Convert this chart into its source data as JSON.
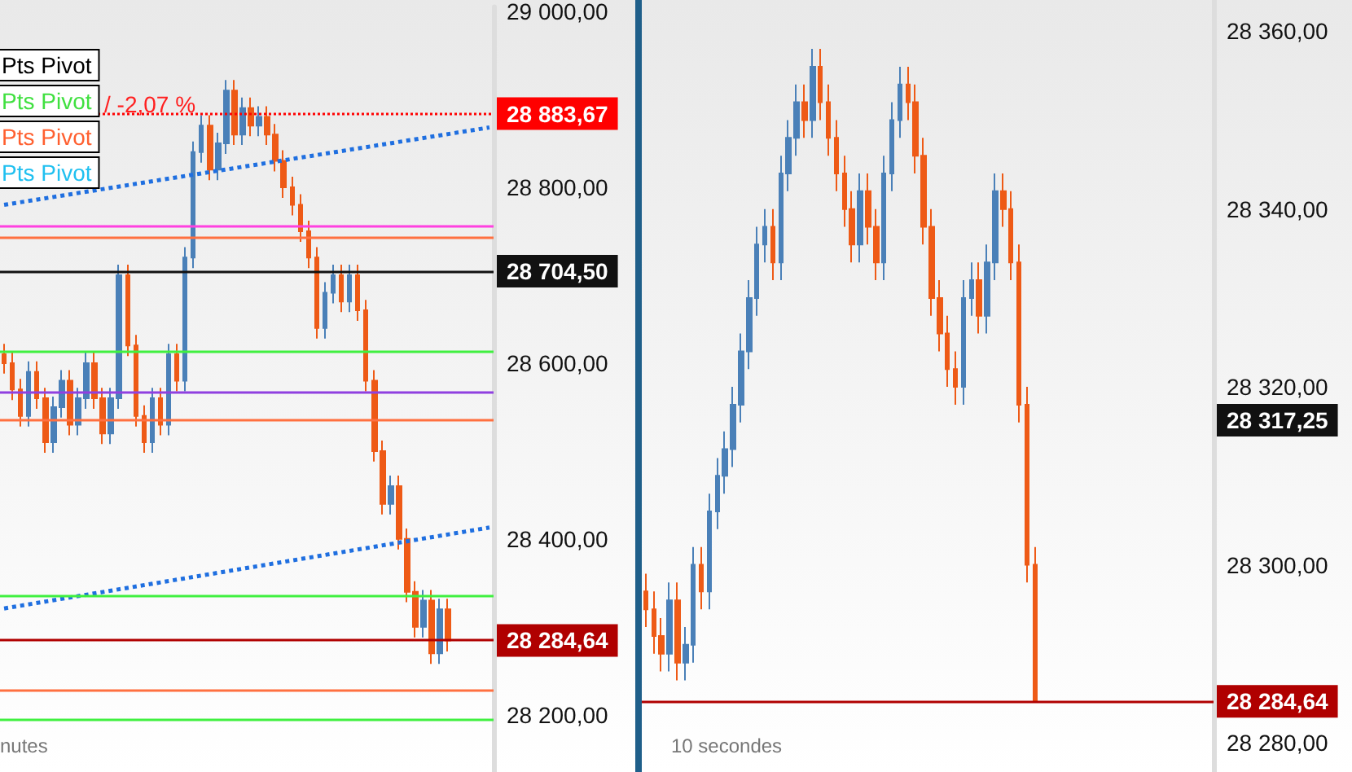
{
  "chart_data": [
    {
      "type": "candlestick",
      "tick_labels": "y",
      "colors": [
        "#ee5a16",
        "#ee5a16",
        "#ee5a16",
        "#4a80b8",
        "#ee5a16",
        "#ee5a16",
        "#4a80b8",
        "#4a80b8",
        "#ee5a16",
        "#4a80b8",
        "#4a80b8",
        "#ee5a16",
        "#ee5a16",
        "#4a80b8",
        "#4a80b8",
        "#ee5a16",
        "#ee5a16",
        "#ee5a16",
        "#4a80b8",
        "#ee5a16",
        "#4a80b8",
        "#ee5a16",
        "#4a80b8",
        "#4a80b8",
        "#4a80b8",
        "#ee5a16",
        "#4a80b8",
        "#4a80b8",
        "#ee5a16",
        "#4a80b8",
        "#ee5a16",
        "#4a80b8",
        "#ee5a16",
        "#ee5a16",
        "#ee5a16",
        "#ee5a16",
        "#ee5a16",
        "#ee5a16",
        "#ee5a16",
        "#4a80b8",
        "#4a80b8",
        "#ee5a16",
        "#4a80b8",
        "#ee5a16",
        "#ee5a16",
        "#ee5a16",
        "#ee5a16",
        "#4a80b8",
        "#ee5a16",
        "#ee5a16",
        "#ee5a16",
        "#4a80b8",
        "#ee5a16",
        "#4a80b8",
        "#ee5a16",
        null,
        null,
        null,
        null,
        null
      ],
      "categories": [
        null,
        null,
        null,
        null,
        null,
        null,
        null,
        null,
        null,
        null,
        null,
        null,
        null,
        null,
        null,
        null,
        null,
        null,
        null,
        null,
        null,
        null,
        null,
        null,
        null,
        null,
        null,
        null,
        null,
        null,
        null,
        null,
        null,
        null,
        null,
        null,
        null,
        null,
        null,
        null,
        null,
        null,
        null,
        null,
        null,
        null,
        null,
        null,
        null,
        null,
        null,
        null,
        null,
        null,
        null,
        null,
        null,
        null,
        null,
        null
      ],
      "ohlc": [
        [
          28610,
          28622,
          28588,
          28600
        ],
        [
          28600,
          28612,
          28558,
          28570
        ],
        [
          28570,
          28582,
          28528,
          28540
        ],
        [
          28540,
          28602,
          28528,
          28590
        ],
        [
          28590,
          28602,
          28548,
          28560
        ],
        [
          28560,
          28572,
          28498,
          28510
        ],
        [
          28510,
          28562,
          28498,
          28550
        ],
        [
          28550,
          28592,
          28538,
          28580
        ],
        [
          28580,
          28592,
          28518,
          28530
        ],
        [
          28530,
          28572,
          28518,
          28560
        ],
        [
          28560,
          28612,
          28548,
          28600
        ],
        [
          28600,
          28612,
          28548,
          28560
        ],
        [
          28560,
          28572,
          28508,
          28520
        ],
        [
          28520,
          28572,
          28508,
          28560
        ],
        [
          28560,
          28712,
          28548,
          28700
        ],
        [
          28700,
          28712,
          28608,
          28620
        ],
        [
          28620,
          28632,
          28528,
          28540
        ],
        [
          28540,
          28552,
          28498,
          28510
        ],
        [
          28510,
          28572,
          28498,
          28560
        ],
        [
          28560,
          28572,
          28518,
          28530
        ],
        [
          28530,
          28622,
          28518,
          28610
        ],
        [
          28610,
          28622,
          28568,
          28580
        ],
        [
          28580,
          28732,
          28568,
          28720
        ],
        [
          28720,
          28852,
          28708,
          28840
        ],
        [
          28840,
          28882,
          28828,
          28870
        ],
        [
          28870,
          28882,
          28808,
          28820
        ],
        [
          28820,
          28862,
          28808,
          28850
        ],
        [
          28850,
          28922,
          28838,
          28910
        ],
        [
          28910,
          28922,
          28848,
          28860
        ],
        [
          28860,
          28902,
          28848,
          28890
        ],
        [
          28890,
          28902,
          28858,
          28870
        ],
        [
          28870,
          28892,
          28858,
          28880
        ],
        [
          28880,
          28892,
          28848,
          28860
        ],
        [
          28860,
          28872,
          28818,
          28830
        ],
        [
          28830,
          28842,
          28788,
          28800
        ],
        [
          28800,
          28812,
          28768,
          28780
        ],
        [
          28780,
          28792,
          28738,
          28750
        ],
        [
          28750,
          28762,
          28708,
          28720
        ],
        [
          28720,
          28732,
          28628,
          28640
        ],
        [
          28640,
          28692,
          28628,
          28680
        ],
        [
          28680,
          28712,
          28668,
          28700
        ],
        [
          28700,
          28712,
          28658,
          28670
        ],
        [
          28670,
          28712,
          28658,
          28700
        ],
        [
          28700,
          28712,
          28648,
          28660
        ],
        [
          28660,
          28672,
          28568,
          28580
        ],
        [
          28580,
          28592,
          28488,
          28500
        ],
        [
          28500,
          28512,
          28428,
          28440
        ],
        [
          28440,
          28472,
          28428,
          28460
        ],
        [
          28460,
          28472,
          28388,
          28400
        ],
        [
          28400,
          28412,
          28328,
          28340
        ],
        [
          28340,
          28352,
          28288,
          28300
        ],
        [
          28300,
          28342,
          28288,
          28330
        ],
        [
          28330,
          28342,
          28258,
          28270
        ],
        [
          28270,
          28332,
          28258,
          28320
        ],
        [
          28320,
          28332,
          28272,
          28284.64
        ],
        null,
        null,
        null,
        null,
        null
      ],
      "series": [
        {
          "type": "line",
          "color": "#1f6fe0",
          "line_style": "dotted",
          "values": [
            28780,
            null,
            null,
            null,
            null,
            null,
            null,
            null,
            null,
            null,
            null,
            null,
            null,
            null,
            null,
            null,
            null,
            null,
            null,
            null,
            null,
            null,
            null,
            null,
            null,
            null,
            null,
            null,
            null,
            null,
            null,
            null,
            null,
            null,
            null,
            null,
            null,
            null,
            null,
            null,
            null,
            null,
            null,
            null,
            null,
            null,
            null,
            null,
            null,
            null,
            null,
            null,
            null,
            null,
            null,
            null,
            null,
            null,
            null,
            28868
          ]
        },
        {
          "type": "line",
          "color": "#1f6fe0",
          "line_style": "dotted",
          "values": [
            28321,
            null,
            null,
            null,
            null,
            null,
            null,
            null,
            null,
            null,
            null,
            null,
            null,
            null,
            null,
            null,
            null,
            null,
            null,
            null,
            null,
            null,
            null,
            null,
            null,
            null,
            null,
            null,
            null,
            null,
            null,
            null,
            null,
            null,
            null,
            null,
            null,
            null,
            null,
            null,
            null,
            null,
            null,
            null,
            null,
            null,
            null,
            null,
            null,
            null,
            null,
            null,
            null,
            null,
            null,
            null,
            null,
            null,
            null,
            28413
          ]
        }
      ],
      "ylim": [
        28135,
        29005
      ],
      "yticks": [
        {
          "value": 28200,
          "label": "28 200,00"
        },
        {
          "value": 28400,
          "label": "28 400,00"
        },
        {
          "value": 28600,
          "label": "28 600,00"
        },
        {
          "value": 28800,
          "label": "28 800,00"
        },
        {
          "value": 29000,
          "label": "29 000,00"
        }
      ],
      "ref_lines": [
        {
          "axis": "y",
          "value": 28883.67,
          "label": "28 883,67",
          "color": "#ff0000",
          "line_style": "dotted"
        },
        {
          "axis": "y",
          "value": 28704.5,
          "label": "28 704,50",
          "color": "#111111",
          "line_style": "solid"
        },
        {
          "axis": "y",
          "value": 28284.64,
          "label": "28 284,64",
          "color": "#b00000",
          "line_style": "solid"
        },
        {
          "axis": "y",
          "value": 28743,
          "color": "#ff7040",
          "line_style": "solid"
        },
        {
          "axis": "y",
          "value": 28536,
          "color": "#ff7040",
          "line_style": "solid"
        },
        {
          "axis": "y",
          "value": 28229,
          "color": "#ff7040",
          "line_style": "solid"
        },
        {
          "axis": "y",
          "value": 28756,
          "color": "#ff40e0",
          "line_style": "solid"
        },
        {
          "axis": "y",
          "value": 28613,
          "color": "#40f040",
          "line_style": "solid"
        },
        {
          "axis": "y",
          "value": 28336,
          "color": "#40f040",
          "line_style": "solid"
        },
        {
          "axis": "y",
          "value": 28194,
          "color": "#40f040",
          "line_style": "solid"
        },
        {
          "axis": "y",
          "value": 28567,
          "color": "#9040e0",
          "line_style": "solid"
        }
      ],
      "annotations": [
        "Pts Pivot",
        "Pts Pivot",
        "Pts Pivot",
        "Pts Pivot",
        "/ -2,07 %",
        "nutes"
      ]
    },
    {
      "type": "candlestick",
      "tick_labels": "y",
      "colors": [
        "#ee5a16",
        "#ee5a16",
        "#ee5a16",
        "#4a80b8",
        "#ee5a16",
        "#4a80b8",
        "#4a80b8",
        "#ee5a16",
        "#4a80b8",
        "#4a80b8",
        "#4a80b8",
        "#4a80b8",
        "#4a80b8",
        "#4a80b8",
        "#4a80b8",
        "#4a80b8",
        "#ee5a16",
        "#4a80b8",
        "#4a80b8",
        "#4a80b8",
        "#ee5a16",
        "#4a80b8",
        "#ee5a16",
        "#ee5a16",
        "#ee5a16",
        "#ee5a16",
        "#ee5a16",
        "#4a80b8",
        "#ee5a16",
        "#ee5a16",
        "#4a80b8",
        "#4a80b8",
        "#4a80b8",
        "#ee5a16",
        "#ee5a16",
        "#ee5a16",
        "#ee5a16",
        "#ee5a16",
        "#ee5a16",
        "#ee5a16",
        "#4a80b8",
        "#4a80b8",
        "#ee5a16",
        "#4a80b8",
        "#4a80b8",
        "#ee5a16",
        "#ee5a16",
        "#ee5a16",
        "#ee5a16",
        "#ee5a16",
        null,
        null,
        null,
        null,
        null,
        null,
        null,
        null,
        null,
        null,
        null,
        null,
        null,
        null,
        null,
        null,
        null,
        null,
        null,
        null,
        null,
        null
      ],
      "categories": [
        null,
        null,
        null,
        null,
        null,
        null,
        null,
        null,
        null,
        null,
        null,
        null,
        null,
        null,
        null,
        null,
        null,
        null,
        null,
        null,
        null,
        null,
        null,
        null,
        null,
        null,
        null,
        null,
        null,
        null,
        null,
        null,
        null,
        null,
        null,
        null,
        null,
        null,
        null,
        null,
        null,
        null,
        null,
        null,
        null,
        null,
        null,
        null,
        null,
        null,
        null,
        null,
        null,
        null,
        null,
        null,
        null,
        null,
        null,
        null,
        null,
        null,
        null,
        null,
        null,
        null,
        null,
        null,
        null,
        null,
        null,
        null
      ],
      "ohlc": [
        [
          28297,
          28299,
          28293,
          28295
        ],
        [
          28295,
          28297,
          28290,
          28292
        ],
        [
          28292,
          28294,
          28288,
          28290
        ],
        [
          28290,
          28298,
          28288,
          28296
        ],
        [
          28296,
          28298,
          28287,
          28289
        ],
        [
          28289,
          28293,
          28287,
          28291
        ],
        [
          28291,
          28302,
          28289,
          28300
        ],
        [
          28300,
          28302,
          28295,
          28297
        ],
        [
          28297,
          28308,
          28295,
          28306
        ],
        [
          28306,
          28312,
          28304,
          28310
        ],
        [
          28310,
          28315,
          28308,
          28313
        ],
        [
          28313,
          28320,
          28311,
          28318
        ],
        [
          28318,
          28326,
          28316,
          28324
        ],
        [
          28324,
          28332,
          28322,
          28330
        ],
        [
          28330,
          28338,
          28328,
          28336
        ],
        [
          28336,
          28340,
          28334,
          28338
        ],
        [
          28338,
          28340,
          28332,
          28334
        ],
        [
          28334,
          28346,
          28332,
          28344
        ],
        [
          28344,
          28350,
          28342,
          28348
        ],
        [
          28348,
          28354,
          28346,
          28352
        ],
        [
          28352,
          28354,
          28348,
          28350
        ],
        [
          28350,
          28358,
          28348,
          28356
        ],
        [
          28356,
          28358,
          28350,
          28352
        ],
        [
          28352,
          28354,
          28346,
          28348
        ],
        [
          28348,
          28350,
          28342,
          28344
        ],
        [
          28344,
          28346,
          28338,
          28340
        ],
        [
          28340,
          28342,
          28334,
          28336
        ],
        [
          28336,
          28344,
          28334,
          28342
        ],
        [
          28342,
          28344,
          28336,
          28338
        ],
        [
          28338,
          28340,
          28332,
          28334
        ],
        [
          28334,
          28346,
          28332,
          28344
        ],
        [
          28344,
          28352,
          28342,
          28350
        ],
        [
          28350,
          28356,
          28348,
          28354
        ],
        [
          28354,
          28356,
          28350,
          28352
        ],
        [
          28352,
          28354,
          28344,
          28346
        ],
        [
          28346,
          28348,
          28336,
          28338
        ],
        [
          28338,
          28340,
          28328,
          28330
        ],
        [
          28330,
          28332,
          28324,
          28326
        ],
        [
          28326,
          28328,
          28320,
          28322
        ],
        [
          28322,
          28324,
          28318,
          28320
        ],
        [
          28320,
          28332,
          28318,
          28330
        ],
        [
          28330,
          28334,
          28328,
          28332
        ],
        [
          28332,
          28334,
          28326,
          28328
        ],
        [
          28328,
          28336,
          28326,
          28334
        ],
        [
          28334,
          28344,
          28332,
          28342
        ],
        [
          28342,
          28344,
          28338,
          28340
        ],
        [
          28340,
          28342,
          28332,
          28334
        ],
        [
          28334,
          28336,
          28316,
          28318
        ],
        [
          28318,
          28320,
          28298,
          28300
        ],
        [
          28300,
          28302,
          28284.64,
          28284.64
        ],
        null,
        null,
        null,
        null,
        null,
        null,
        null,
        null,
        null,
        null,
        null,
        null,
        null,
        null,
        null,
        null,
        null,
        null,
        null,
        null,
        null,
        null
      ],
      "ylim": [
        28276.7,
        28363.5
      ],
      "yticks": [
        {
          "value": 28280,
          "label": "28 280,00"
        },
        {
          "value": 28300,
          "label": "28 300,00"
        },
        {
          "value": 28320,
          "label": "28 320,00"
        },
        {
          "value": 28340,
          "label": "28 340,00"
        },
        {
          "value": 28360,
          "label": "28 360,00"
        }
      ],
      "ref_lines": [
        {
          "axis": "y",
          "value": 28284.64,
          "label": "28 284,64",
          "color": "#b00000",
          "line_style": "solid"
        }
      ],
      "annotations": [
        "10 secondes",
        "28 317,25"
      ]
    }
  ]
}
